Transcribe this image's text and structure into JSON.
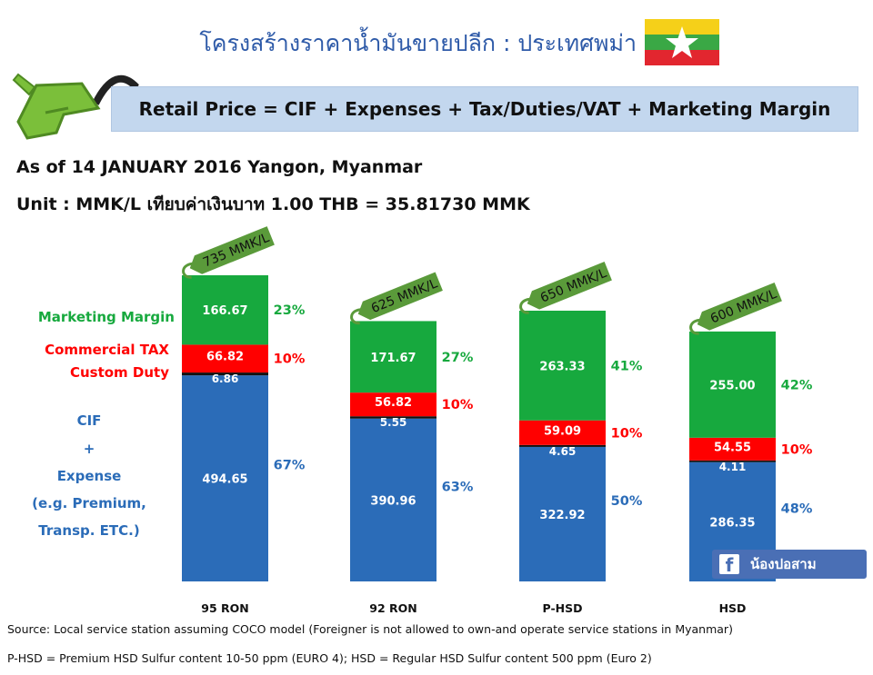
{
  "header": {
    "title": "โครงสร้างราคาน้ำมันขายปลีก : ประเทศพม่า",
    "formula": "Retail Price = CIF + Expenses + Tax/Duties/VAT + Marketing Margin",
    "as_of": "As of 14 JANUARY 2016 Yangon, Myanmar",
    "unit": "Unit : MMK/L เทียบค่าเงินบาท 1.00 THB = 35.81730 MMK"
  },
  "flag_colors": {
    "top": "#f5d019",
    "middle": "#3aa845",
    "bottom": "#e2262f",
    "star": "#ffffff"
  },
  "colors": {
    "cif": "#2b6cb8",
    "duty": "#111111",
    "tax": "#ff0000",
    "margin": "#17a93e",
    "tag": "#5a9a3a"
  },
  "legend_labels": {
    "margin": "Marketing Margin",
    "tax": "Commercial TAX",
    "duty": "Custom Duty",
    "cif_lines": [
      "CIF",
      "+",
      "Expense",
      "(e.g. Premium,",
      "Transp. ETC.)"
    ]
  },
  "chart_data": {
    "type": "bar",
    "stacked": true,
    "categories": [
      "95 RON",
      "92 RON",
      "P-HSD",
      "HSD"
    ],
    "series": [
      {
        "name": "CIF + Expense",
        "values": [
          494.65,
          390.96,
          322.92,
          286.35
        ],
        "pct": [
          "67%",
          "63%",
          "50%",
          "48%"
        ]
      },
      {
        "name": "Custom Duty",
        "values": [
          6.86,
          5.55,
          4.65,
          4.11
        ]
      },
      {
        "name": "Commercial TAX",
        "values": [
          66.82,
          56.82,
          59.09,
          54.55
        ],
        "pct": [
          "10%",
          "10%",
          "10%",
          "10%"
        ]
      },
      {
        "name": "Marketing Margin",
        "values": [
          166.67,
          171.67,
          263.33,
          255.0
        ],
        "pct": [
          "23%",
          "27%",
          "41%",
          "42%"
        ]
      }
    ],
    "value_labels": {
      "cif": [
        "494.65",
        "390.96",
        "322.92",
        "286.35"
      ],
      "duty": [
        "6.86",
        "5.55",
        "4.65",
        "4.11"
      ],
      "tax": [
        "66.82",
        "56.82",
        "59.09",
        "54.55"
      ],
      "margin": [
        "166.67",
        "171.67",
        "263.33",
        "255.00"
      ]
    },
    "totals": [
      "735 MMK/L",
      "625 MMK/L",
      "650 MMK/L",
      "600 MMK/L"
    ],
    "ylim": [
      0,
      735
    ],
    "grid": false
  },
  "social": {
    "icon": "facebook-icon",
    "name": "น้องปอสาม"
  },
  "notes": {
    "source": "Source: Local service station assuming COCO model (Foreigner is not allowed to own-and operate service stations in Myanmar)",
    "definition": "P-HSD = Premium HSD Sulfur content 10-50 ppm (EURO 4); HSD = Regular HSD Sulfur content 500 ppm (Euro 2)"
  }
}
